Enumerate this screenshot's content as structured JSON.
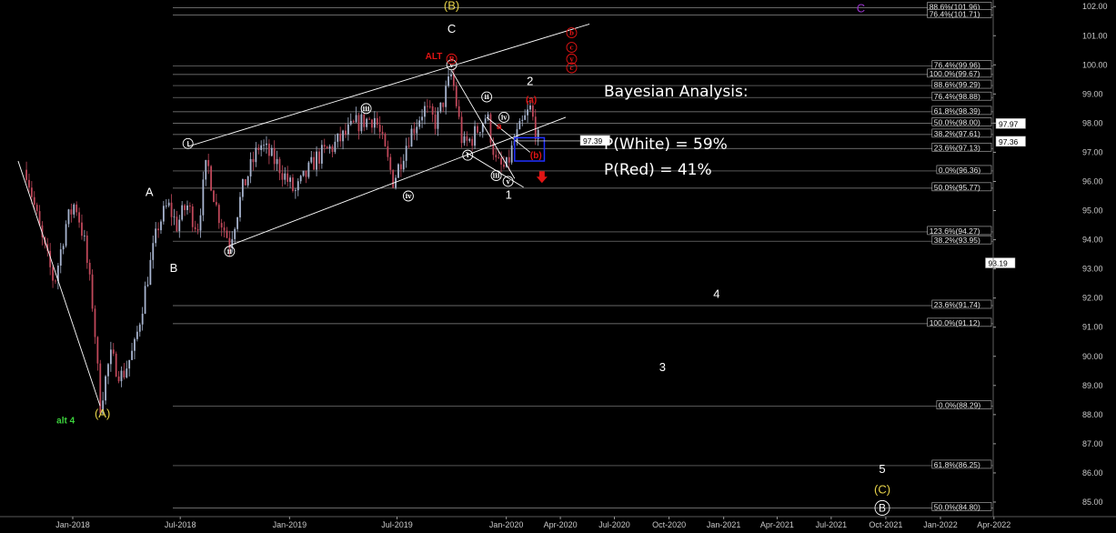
{
  "colors": {
    "background": "#000000",
    "white": "#ffffff",
    "red": "#e01414",
    "yellow": "#e8d44a",
    "green": "#3cd23c",
    "purple": "#9932cc",
    "blue": "#2030ff",
    "bull": "#a7b4cf",
    "bear": "#c0485a"
  },
  "title_lines": [
    "Bayesian Analysis:",
    "P(White) = 59%",
    "P(Red) = 41%"
  ],
  "chart_data": {
    "type": "candlestick",
    "instrument": "",
    "x_axis": {
      "ticks": [
        "Jan-2018",
        "Jul-2018",
        "Jan-2019",
        "Jul-2019",
        "Jan-2020",
        "Apr-2020",
        "Jul-2020",
        "Oct-2020",
        "Jan-2021",
        "Apr-2021",
        "Jul-2021",
        "Oct-2021",
        "Jan-2022",
        "Apr-2022"
      ]
    },
    "y_axis": {
      "position": "right",
      "range": [
        84.5,
        102.1
      ],
      "ticks": [
        85,
        86,
        87,
        88,
        89,
        90,
        91,
        92,
        93,
        94,
        95,
        96,
        97,
        98,
        99,
        100,
        101,
        102
      ],
      "tick_labels": [
        "85.00",
        "86.00",
        "87.00",
        "88.00",
        "89.00",
        "90.00",
        "91.00",
        "92.00",
        "93.00",
        "94.00",
        "95.00",
        "96.00",
        "97.00",
        "98.00",
        "99.00",
        "100.00",
        "101.00",
        "102.00"
      ]
    },
    "fib_levels": [
      {
        "label": "88.6%(101.96)",
        "value": 101.96
      },
      {
        "label": "76.4%(101.71)",
        "value": 101.71
      },
      {
        "label": "76.4%(99.96)",
        "value": 99.96
      },
      {
        "label": "100.0%(99.67)",
        "value": 99.67
      },
      {
        "label": "88.6%(99.29)",
        "value": 99.29
      },
      {
        "label": "76.4%(98.88)",
        "value": 98.88
      },
      {
        "label": "61.8%(98.39)",
        "value": 98.39
      },
      {
        "label": "50.0%(98.00)",
        "value": 98.0
      },
      {
        "label": "38.2%(97.61)",
        "value": 97.61
      },
      {
        "label": "23.6%(97.13)",
        "value": 97.13
      },
      {
        "label": "0.0%(96.36)",
        "value": 96.36
      },
      {
        "label": "50.0%(95.77)",
        "value": 95.77
      },
      {
        "label": "123.6%(94.27)",
        "value": 94.27
      },
      {
        "label": "38.2%(93.95)",
        "value": 93.95
      },
      {
        "label": "23.6%(91.74)",
        "value": 91.74
      },
      {
        "label": "100.0%(91.12)",
        "value": 91.12
      },
      {
        "label": "0.0%(88.29)",
        "value": 88.29
      },
      {
        "label": "61.8%(86.25)",
        "value": 86.25
      },
      {
        "label": "50.0%(84.80)",
        "value": 84.8
      }
    ],
    "price_boxes": [
      {
        "label": "93.19",
        "value": 93.19
      },
      {
        "label": "97.39",
        "value": 97.39
      },
      {
        "label": "97.97",
        "value": 97.97
      },
      {
        "label": "97.36",
        "value": 97.36
      }
    ],
    "price_path": [
      {
        "x": "2017-10-15",
        "y": 96.4
      },
      {
        "x": "2017-11-10",
        "y": 94.0
      },
      {
        "x": "2017-12-01",
        "y": 92.5
      },
      {
        "x": "2017-12-20",
        "y": 94.5
      },
      {
        "x": "2018-01-05",
        "y": 95.3
      },
      {
        "x": "2018-01-20",
        "y": 94.0
      },
      {
        "x": "2018-02-05",
        "y": 91.5
      },
      {
        "x": "2018-02-16",
        "y": 88.3
      },
      {
        "x": "2018-03-05",
        "y": 90.0
      },
      {
        "x": "2018-03-25",
        "y": 89.3
      },
      {
        "x": "2018-04-15",
        "y": 90.3
      },
      {
        "x": "2018-05-05",
        "y": 92.5
      },
      {
        "x": "2018-05-25",
        "y": 94.5
      },
      {
        "x": "2018-06-10",
        "y": 95.2
      },
      {
        "x": "2018-06-25",
        "y": 94.5
      },
      {
        "x": "2018-07-12",
        "y": 95.2
      },
      {
        "x": "2018-07-30",
        "y": 94.4
      },
      {
        "x": "2018-08-15",
        "y": 96.7
      },
      {
        "x": "2018-09-01",
        "y": 95.0
      },
      {
        "x": "2018-09-22",
        "y": 93.9
      },
      {
        "x": "2018-10-15",
        "y": 95.8
      },
      {
        "x": "2018-11-12",
        "y": 97.3
      },
      {
        "x": "2018-12-15",
        "y": 96.5
      },
      {
        "x": "2019-01-10",
        "y": 95.6
      },
      {
        "x": "2019-02-15",
        "y": 96.8
      },
      {
        "x": "2019-03-15",
        "y": 97.2
      },
      {
        "x": "2019-04-25",
        "y": 98.0
      },
      {
        "x": "2019-05-25",
        "y": 98.2
      },
      {
        "x": "2019-06-25",
        "y": 96.0
      },
      {
        "x": "2019-07-20",
        "y": 97.5
      },
      {
        "x": "2019-08-15",
        "y": 98.5
      },
      {
        "x": "2019-09-05",
        "y": 98.0
      },
      {
        "x": "2019-10-01",
        "y": 99.7
      },
      {
        "x": "2019-10-20",
        "y": 97.2
      },
      {
        "x": "2019-11-05",
        "y": 97.5
      },
      {
        "x": "2019-11-29",
        "y": 98.3
      },
      {
        "x": "2019-12-15",
        "y": 96.6
      },
      {
        "x": "2019-12-31",
        "y": 96.4
      },
      {
        "x": "2020-01-15",
        "y": 97.4
      },
      {
        "x": "2020-02-10",
        "y": 98.5
      },
      {
        "x": "2020-02-24",
        "y": 97.4
      }
    ],
    "channels": [
      {
        "color": "white",
        "points": [
          {
            "x": "2018-07-14",
            "y": 97.2
          },
          {
            "x": "2020-05-20",
            "y": 101.4
          }
        ]
      },
      {
        "color": "white",
        "points": [
          {
            "x": "2018-09-22",
            "y": 93.8
          },
          {
            "x": "2020-04-10",
            "y": 98.2
          }
        ]
      },
      {
        "color": "white",
        "points": [
          {
            "x": "2019-10-01",
            "y": 99.8
          },
          {
            "x": "2020-01-15",
            "y": 96.1
          }
        ]
      },
      {
        "color": "white",
        "points": [
          {
            "x": "2019-10-25",
            "y": 97.0
          },
          {
            "x": "2020-01-30",
            "y": 95.8
          }
        ]
      },
      {
        "color": "white",
        "points": [
          {
            "x": "2019-11-29",
            "y": 98.2
          },
          {
            "x": "2020-02-10",
            "y": 97.0
          }
        ]
      },
      {
        "color": "white",
        "points": [
          {
            "x": "2017-10-01",
            "y": 96.7
          },
          {
            "x": "2018-02-16",
            "y": 88.3
          }
        ]
      }
    ],
    "target_box": {
      "x_from": "2020-01-15",
      "x_to": "2020-03-05",
      "y_from": 96.7,
      "y_to": 97.5
    },
    "labels": [
      {
        "text": "(B)",
        "color": "yellow",
        "x": "2019-10-01",
        "y": 101.9
      },
      {
        "text": "C",
        "color": "white",
        "x": "2019-10-01",
        "y": 101.1
      },
      {
        "text": "ALT",
        "color": "red",
        "x": "2019-09-01",
        "y": 100.2,
        "small": true
      },
      {
        "text": "A",
        "color": "white",
        "x": "2018-05-10",
        "y": 95.5
      },
      {
        "text": "B",
        "color": "white",
        "x": "2018-06-20",
        "y": 92.9
      },
      {
        "text": "(A)",
        "color": "yellow",
        "x": "2018-02-20",
        "y": 87.9
      },
      {
        "text": "alt 4",
        "color": "green",
        "x": "2017-12-20",
        "y": 87.7,
        "small": true
      },
      {
        "text": "2",
        "color": "white",
        "x": "2020-02-10",
        "y": 99.3
      },
      {
        "text": "1",
        "color": "white",
        "x": "2020-01-05",
        "y": 95.4
      },
      {
        "text": "4",
        "color": "white",
        "x": "2020-12-20",
        "y": 92.0
      },
      {
        "text": "3",
        "color": "white",
        "x": "2020-09-20",
        "y": 89.5
      },
      {
        "text": "5",
        "color": "white",
        "x": "2021-09-25",
        "y": 86.0
      },
      {
        "text": "(C)",
        "color": "yellow",
        "x": "2021-09-25",
        "y": 85.3
      },
      {
        "text": "C",
        "color": "purple",
        "x": "2021-08-20",
        "y": 101.8
      },
      {
        "text": "(a)",
        "color": "red",
        "x": "2020-02-12",
        "y": 98.7,
        "small": true
      },
      {
        "text": "(b)",
        "color": "red",
        "x": "2020-02-20",
        "y": 96.8,
        "small": true
      },
      {
        "text": "a",
        "color": "red",
        "x": "2019-12-20",
        "y": 97.8,
        "small": true
      }
    ],
    "circled_labels": [
      {
        "text": "i",
        "color": "white",
        "x": "2018-07-14",
        "y": 97.3
      },
      {
        "text": "ii",
        "color": "white",
        "x": "2018-09-22",
        "y": 93.6
      },
      {
        "text": "iii",
        "color": "white",
        "x": "2019-05-10",
        "y": 98.5
      },
      {
        "text": "iv",
        "color": "white",
        "x": "2019-07-20",
        "y": 95.5
      },
      {
        "text": "v",
        "color": "white",
        "x": "2019-10-01",
        "y": 100.0
      },
      {
        "text": "i",
        "color": "white",
        "x": "2019-10-28",
        "y": 96.9
      },
      {
        "text": "ii",
        "color": "white",
        "x": "2019-11-29",
        "y": 98.9
      },
      {
        "text": "iii",
        "color": "white",
        "x": "2019-12-15",
        "y": 96.2
      },
      {
        "text": "iv",
        "color": "white",
        "x": "2019-12-28",
        "y": 98.2
      },
      {
        "text": "v",
        "color": "white",
        "x": "2020-01-04",
        "y": 96.0
      },
      {
        "text": "B",
        "color": "white",
        "x": "2021-09-25",
        "y": 84.8
      },
      {
        "text": "B",
        "color": "red",
        "x": "2019-10-01",
        "y": 100.2
      },
      {
        "text": "b",
        "color": "red",
        "x": "2020-04-20",
        "y": 101.1
      },
      {
        "text": "c",
        "color": "red",
        "x": "2020-04-20",
        "y": 100.6
      },
      {
        "text": "v",
        "color": "red",
        "x": "2020-04-20",
        "y": 100.2
      },
      {
        "text": "c",
        "color": "red",
        "x": "2020-04-20",
        "y": 99.9
      }
    ],
    "arrow": {
      "color": "red",
      "direction": "down",
      "x": "2020-03-01",
      "y": 96.1
    }
  }
}
